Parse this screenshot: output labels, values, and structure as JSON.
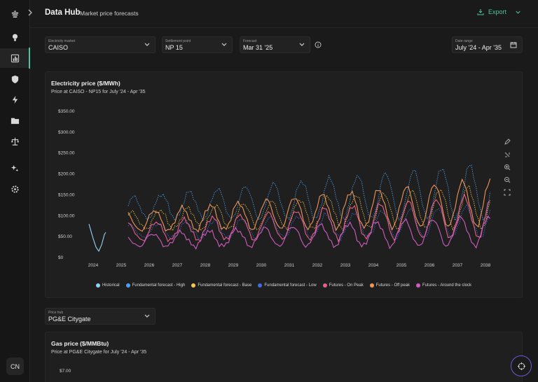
{
  "header": {
    "title": "Data Hub",
    "subtitle": "Market price forecasts",
    "export_label": "Export"
  },
  "sidebar": {
    "items": [
      "logo-icon",
      "lightbulb-icon",
      "bar-chart-icon",
      "shield-icon",
      "bolt-icon",
      "folder-icon",
      "scale-icon",
      "sparkle-icon",
      "settings-icon"
    ],
    "avatar": "CN"
  },
  "filters": {
    "electricity_market": {
      "label": "Electricity market",
      "value": "CAISO"
    },
    "settlement_point": {
      "label": "Settlement point",
      "value": "NP 15"
    },
    "forecast": {
      "label": "Forecast",
      "value": "Mar 31 '25"
    },
    "date_range": {
      "label": "Date range",
      "value": "July '24 - Apr '35"
    }
  },
  "electricity_card": {
    "title": "Electricity price ($/MWh)",
    "subtitle": "Price at CAISO - NP15 for July '24 - Apr '35"
  },
  "gas_filter": {
    "label": "Price hub",
    "value": "PG&E Citygate"
  },
  "gas_card": {
    "title": "Gas price ($/MMBtu)",
    "subtitle": "Price at PG&E Citygate for July '24 - Apr '35",
    "first_tick": "$7.00"
  },
  "colors": {
    "accent": "#4fc3a1",
    "background": "#1a1a1a",
    "card": "#1f1f1f"
  },
  "chart_data": {
    "type": "line",
    "y_ticks": [
      "$350.00",
      "$300.00",
      "$250.00",
      "$200.00",
      "$150.00",
      "$100.00",
      "$50.00",
      "$0"
    ],
    "x_ticks": [
      "2024",
      "2025",
      "2026",
      "2027",
      "2028",
      "2029",
      "2030",
      "2031",
      "2032",
      "2033",
      "2034",
      "2035",
      "2036",
      "2037",
      "2038"
    ],
    "ylim": [
      0,
      350
    ],
    "xlim": [
      2023.6,
      2038.3
    ],
    "legend": "bottom",
    "series": [
      {
        "name": "Historical",
        "color": "#8fd3f5",
        "style": "solid",
        "x": [
          2023.85,
          2024.0,
          2024.1,
          2024.2,
          2024.3,
          2024.4,
          2024.45
        ],
        "values": [
          80,
          45,
          25,
          15,
          30,
          55,
          60
        ]
      },
      {
        "name": "Fundamental forecast - High",
        "color": "#4aa3ee",
        "style": "dotted",
        "base": 118,
        "amp": 26,
        "trend": 3.2
      },
      {
        "name": "Fundamental forecast - Base",
        "color": "#f2c94c",
        "style": "dotted",
        "base": 88,
        "amp": 20,
        "trend": 2.6
      },
      {
        "name": "Fundamental forecast - Low",
        "color": "#3f6de0",
        "style": "dotted",
        "base": 62,
        "amp": 15,
        "trend": 1.9
      },
      {
        "name": "Futures - On Peak",
        "color": "#e85d8a",
        "style": "solid",
        "base": 60,
        "amp": 20,
        "trend": 3.0
      },
      {
        "name": "Futures - Off peak",
        "color": "#f0955a",
        "style": "solid",
        "base": 85,
        "amp": 22,
        "trend": 3.6
      },
      {
        "name": "Futures - Around the clock",
        "color": "#d05cc0",
        "style": "solid",
        "base": 40,
        "amp": 14,
        "trend": 1.8
      }
    ]
  }
}
